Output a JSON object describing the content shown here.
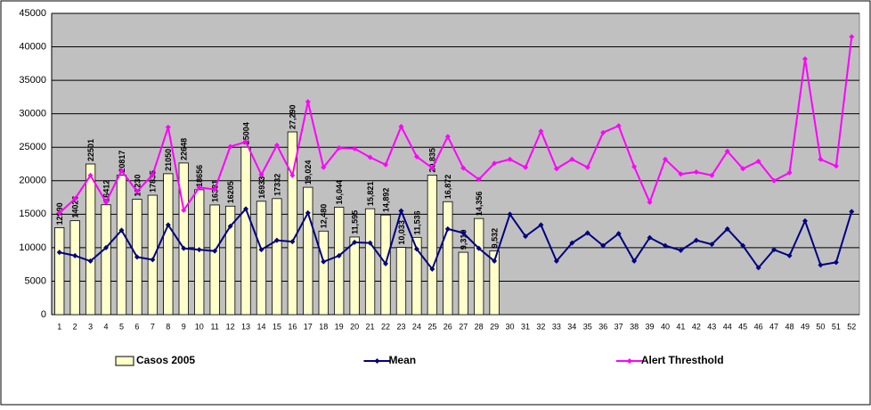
{
  "chart_data": {
    "type": "bar",
    "categories": [
      "1",
      "2",
      "3",
      "4",
      "5",
      "6",
      "7",
      "8",
      "9",
      "10",
      "11",
      "12",
      "13",
      "14",
      "15",
      "16",
      "17",
      "18",
      "19",
      "20",
      "21",
      "22",
      "23",
      "24",
      "25",
      "26",
      "27",
      "28",
      "29",
      "30",
      "31",
      "32",
      "33",
      "34",
      "35",
      "36",
      "37",
      "38",
      "39",
      "40",
      "41",
      "42",
      "43",
      "44",
      "45",
      "46",
      "47",
      "48",
      "49",
      "50",
      "51",
      "52"
    ],
    "series": [
      {
        "name": "Casos 2005",
        "type": "bar",
        "color": "#ffffcc",
        "values": [
          12990,
          14026,
          22501,
          16412,
          20817,
          17230,
          17835,
          21050,
          22648,
          18656,
          16381,
          16205,
          25004,
          16933,
          17332,
          27290,
          19024,
          12480,
          16044,
          11595,
          15821,
          14892,
          10033,
          11536,
          20835,
          16872,
          9310,
          14356,
          9532,
          null,
          null,
          null,
          null,
          null,
          null,
          null,
          null,
          null,
          null,
          null,
          null,
          null,
          null,
          null,
          null,
          null,
          null,
          null,
          null,
          null,
          null,
          null
        ],
        "value_labels": [
          "12990",
          "14026",
          "22501",
          "16412",
          "20817",
          "17230",
          "17835",
          "21050",
          "22648",
          "18656",
          "16381",
          "16205",
          "25004",
          "16933",
          "17332",
          "27,290",
          "19,024",
          "12,480",
          "16,044",
          "11,595",
          "15,821",
          "14,892",
          "10,033",
          "11,536",
          "20,835",
          "16,872",
          "9,310",
          "14,356",
          "9,532",
          null,
          null,
          null,
          null,
          null,
          null,
          null,
          null,
          null,
          null,
          null,
          null,
          null,
          null,
          null,
          null,
          null,
          null,
          null,
          null,
          null,
          null,
          null
        ]
      },
      {
        "name": "Mean",
        "type": "line",
        "color": "#000080",
        "values": [
          9300,
          8800,
          8000,
          10000,
          12600,
          8600,
          8200,
          13400,
          9900,
          9700,
          9500,
          13200,
          15800,
          9700,
          11100,
          10900,
          15200,
          7900,
          8800,
          10800,
          10700,
          7600,
          15500,
          9800,
          6800,
          12800,
          12200,
          9900,
          8000,
          15000,
          11700,
          13400,
          8000,
          10700,
          12200,
          10300,
          12100,
          8000,
          11500,
          10300,
          9600,
          11100,
          10500,
          12800,
          10300,
          7000,
          9700,
          8800,
          14000,
          7400,
          7800,
          15400
        ]
      },
      {
        "name": "Alert Thresthold",
        "type": "line",
        "color": "#ff00ff",
        "values": [
          15200,
          17300,
          20800,
          16800,
          21500,
          18400,
          20900,
          28000,
          15600,
          19000,
          18700,
          25100,
          25800,
          20900,
          25300,
          20800,
          31800,
          22000,
          24900,
          24800,
          23500,
          22400,
          28100,
          23600,
          21900,
          26600,
          21900,
          20200,
          22600,
          23200,
          22000,
          27400,
          21800,
          23200,
          22000,
          27200,
          28200,
          22100,
          16800,
          23200,
          21000,
          21300,
          20800,
          24400,
          21800,
          22900,
          20000,
          21200,
          38200,
          23200,
          22200,
          41500
        ]
      }
    ],
    "ylim": [
      0,
      45000
    ],
    "yticks": [
      0,
      5000,
      10000,
      15000,
      20000,
      25000,
      30000,
      35000,
      40000,
      45000
    ],
    "grid": true,
    "plot_background": "#c0c0c0",
    "legend": "bottom"
  }
}
